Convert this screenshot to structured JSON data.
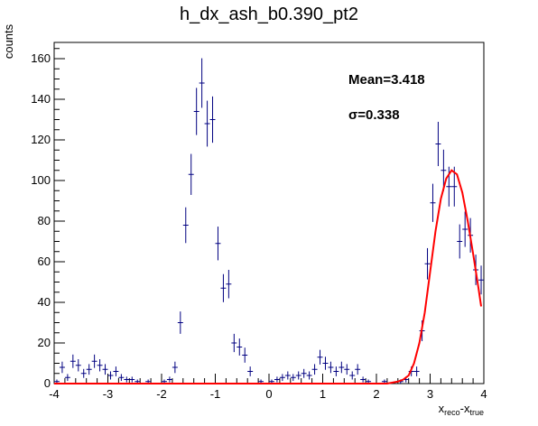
{
  "chart_data": {
    "type": "scatter",
    "title": "h_dx_ash_b0.390_pt2",
    "ylabel": "counts",
    "xlabel": {
      "main": "x",
      "sub1": "reco",
      "mid": "-x",
      "sub2": "true"
    },
    "xlim": [
      -4,
      4
    ],
    "ylim": [
      0,
      168
    ],
    "x_ticks": [
      -4,
      -3,
      -2,
      -1,
      0,
      1,
      2,
      3,
      4
    ],
    "y_ticks": [
      0,
      20,
      40,
      60,
      80,
      100,
      120,
      140,
      160
    ],
    "bin_width": 0.1,
    "annotations": {
      "mean": "Mean=3.418",
      "sigma": "σ=0.338"
    },
    "series": [
      {
        "name": "",
        "color": "#000080",
        "points": [
          {
            "x": -3.95,
            "y": 1,
            "err": 1
          },
          {
            "x": -3.85,
            "y": 8,
            "err": 2.8
          },
          {
            "x": -3.75,
            "y": 3,
            "err": 1.7
          },
          {
            "x": -3.65,
            "y": 11,
            "err": 3.3
          },
          {
            "x": -3.55,
            "y": 9,
            "err": 3
          },
          {
            "x": -3.45,
            "y": 5,
            "err": 2.2
          },
          {
            "x": -3.35,
            "y": 7,
            "err": 2.6
          },
          {
            "x": -3.25,
            "y": 11,
            "err": 3.3
          },
          {
            "x": -3.15,
            "y": 9,
            "err": 3
          },
          {
            "x": -3.05,
            "y": 7,
            "err": 2.6
          },
          {
            "x": -2.95,
            "y": 4,
            "err": 2
          },
          {
            "x": -2.85,
            "y": 6,
            "err": 2.4
          },
          {
            "x": -2.75,
            "y": 3,
            "err": 1.7
          },
          {
            "x": -2.65,
            "y": 2,
            "err": 1.4
          },
          {
            "x": -2.55,
            "y": 2,
            "err": 1.4
          },
          {
            "x": -2.45,
            "y": 1,
            "err": 1
          },
          {
            "x": -2.25,
            "y": 1,
            "err": 1
          },
          {
            "x": -1.95,
            "y": 1,
            "err": 1
          },
          {
            "x": -1.85,
            "y": 2,
            "err": 1.4
          },
          {
            "x": -1.75,
            "y": 8,
            "err": 2.8
          },
          {
            "x": -1.65,
            "y": 30,
            "err": 5.5
          },
          {
            "x": -1.55,
            "y": 78,
            "err": 8.8
          },
          {
            "x": -1.45,
            "y": 103,
            "err": 10.1
          },
          {
            "x": -1.35,
            "y": 134,
            "err": 11.6
          },
          {
            "x": -1.25,
            "y": 148,
            "err": 12.2
          },
          {
            "x": -1.15,
            "y": 128,
            "err": 11.3
          },
          {
            "x": -1.05,
            "y": 130,
            "err": 11.4
          },
          {
            "x": -0.95,
            "y": 69,
            "err": 8.3
          },
          {
            "x": -0.85,
            "y": 47,
            "err": 6.9
          },
          {
            "x": -0.75,
            "y": 49,
            "err": 7
          },
          {
            "x": -0.65,
            "y": 20,
            "err": 4.5
          },
          {
            "x": -0.55,
            "y": 18,
            "err": 4.2
          },
          {
            "x": -0.45,
            "y": 14,
            "err": 3.7
          },
          {
            "x": -0.35,
            "y": 6,
            "err": 2.4
          },
          {
            "x": -0.15,
            "y": 1,
            "err": 1
          },
          {
            "x": 0.05,
            "y": 1,
            "err": 1
          },
          {
            "x": 0.15,
            "y": 2,
            "err": 1.4
          },
          {
            "x": 0.25,
            "y": 3,
            "err": 1.7
          },
          {
            "x": 0.35,
            "y": 4,
            "err": 2
          },
          {
            "x": 0.45,
            "y": 3,
            "err": 1.7
          },
          {
            "x": 0.55,
            "y": 4,
            "err": 2
          },
          {
            "x": 0.65,
            "y": 5,
            "err": 2.2
          },
          {
            "x": 0.75,
            "y": 4,
            "err": 2
          },
          {
            "x": 0.85,
            "y": 7,
            "err": 2.6
          },
          {
            "x": 0.95,
            "y": 13,
            "err": 3.6
          },
          {
            "x": 1.05,
            "y": 10,
            "err": 3.2
          },
          {
            "x": 1.15,
            "y": 8,
            "err": 2.8
          },
          {
            "x": 1.25,
            "y": 6,
            "err": 2.4
          },
          {
            "x": 1.35,
            "y": 8,
            "err": 2.8
          },
          {
            "x": 1.45,
            "y": 7,
            "err": 2.6
          },
          {
            "x": 1.55,
            "y": 4,
            "err": 2
          },
          {
            "x": 1.65,
            "y": 7,
            "err": 2.6
          },
          {
            "x": 1.75,
            "y": 2,
            "err": 1.4
          },
          {
            "x": 1.85,
            "y": 1,
            "err": 1
          },
          {
            "x": 2.15,
            "y": 1,
            "err": 1
          },
          {
            "x": 2.45,
            "y": 1,
            "err": 1
          },
          {
            "x": 2.55,
            "y": 2,
            "err": 1.4
          },
          {
            "x": 2.65,
            "y": 6,
            "err": 2.4
          },
          {
            "x": 2.75,
            "y": 6,
            "err": 2.4
          },
          {
            "x": 2.85,
            "y": 26,
            "err": 5.1
          },
          {
            "x": 2.95,
            "y": 59,
            "err": 7.7
          },
          {
            "x": 3.05,
            "y": 89,
            "err": 9.4
          },
          {
            "x": 3.15,
            "y": 118,
            "err": 10.9
          },
          {
            "x": 3.25,
            "y": 105,
            "err": 10.2
          },
          {
            "x": 3.35,
            "y": 97,
            "err": 9.8
          },
          {
            "x": 3.45,
            "y": 97,
            "err": 9.8
          },
          {
            "x": 3.55,
            "y": 70,
            "err": 8.4
          },
          {
            "x": 3.65,
            "y": 76,
            "err": 8.7
          },
          {
            "x": 3.75,
            "y": 73,
            "err": 8.5
          },
          {
            "x": 3.85,
            "y": 56,
            "err": 7.5
          },
          {
            "x": 3.95,
            "y": 51,
            "err": 7.1
          }
        ]
      }
    ],
    "fit": {
      "color": "#ff0000",
      "x": [
        -4.0,
        2.2,
        2.3,
        2.4,
        2.5,
        2.6,
        2.7,
        2.8,
        2.9,
        3.0,
        3.1,
        3.2,
        3.3,
        3.4,
        3.5,
        3.6,
        3.7,
        3.8,
        3.9,
        3.95
      ],
      "y": [
        0,
        0,
        0.5,
        1,
        2,
        4,
        10,
        20,
        35,
        55,
        75,
        91,
        101,
        105,
        103,
        94,
        80,
        64,
        47,
        38
      ]
    }
  }
}
